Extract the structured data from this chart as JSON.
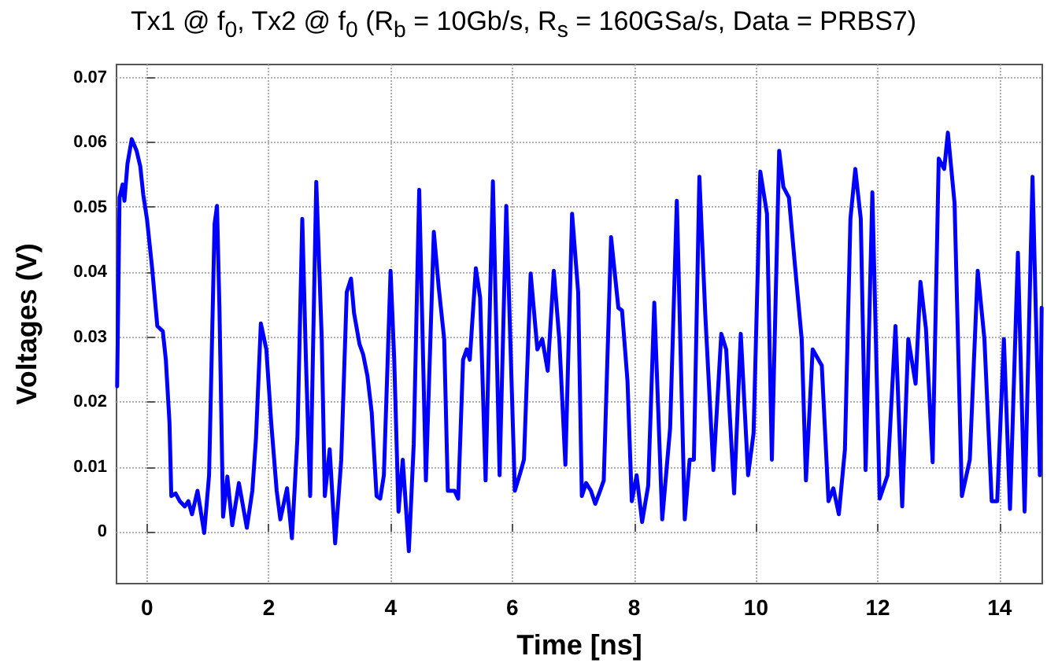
{
  "chart_data": {
    "type": "line",
    "title": "Tx1 @ f$_{0}$, Tx2 @ f$_{0}$ (R$_{b}$ = 10Gb/s, R$_{s}$ = 160GSa/s, Data = PRBS7)",
    "xlabel": "Time [ns]",
    "ylabel": "Voltages (V)",
    "xlim": [
      -0.5,
      14.7
    ],
    "ylim": [
      -0.008,
      0.072
    ],
    "xticks": [
      0,
      2,
      4,
      6,
      8,
      10,
      12,
      14
    ],
    "yticks": [
      0,
      0.01,
      0.02,
      0.03,
      0.04,
      0.05,
      0.06,
      0.07
    ],
    "grid": true,
    "marker": "none",
    "line_style": "solid",
    "series": [
      {
        "color": "#0000ff",
        "x": [
          -0.49,
          -0.45,
          -0.4,
          -0.37,
          -0.32,
          -0.25,
          -0.17,
          -0.11,
          -0.06,
          0,
          0.085,
          0.17,
          0.26,
          0.31,
          0.37,
          0.4,
          0.47,
          0.54,
          0.62,
          0.68,
          0.74,
          0.83,
          0.94,
          1.02,
          1.11,
          1.15,
          1.19,
          1.25,
          1.32,
          1.4,
          1.51,
          1.64,
          1.73,
          1.79,
          1.87,
          1.96,
          2.04,
          2.13,
          2.19,
          2.3,
          2.38,
          2.47,
          2.55,
          2.61,
          2.68,
          2.78,
          2.87,
          2.92,
          3,
          3.09,
          3.19,
          3.28,
          3.35,
          3.4,
          3.49,
          3.55,
          3.62,
          3.69,
          3.77,
          3.83,
          3.89,
          4,
          4.06,
          4.13,
          4.2,
          4.3,
          4.38,
          4.47,
          4.58,
          4.71,
          4.79,
          4.88,
          4.94,
          5.05,
          5.11,
          5.19,
          5.25,
          5.3,
          5.4,
          5.47,
          5.56,
          5.68,
          5.79,
          5.9,
          6.04,
          6.13,
          6.19,
          6.3,
          6.41,
          6.49,
          6.58,
          6.68,
          6.77,
          6.87,
          6.98,
          7.08,
          7.14,
          7.21,
          7.29,
          7.36,
          7.44,
          7.5,
          7.62,
          7.74,
          7.8,
          7.89,
          7.96,
          8.04,
          8.13,
          8.23,
          8.33,
          8.46,
          8.59,
          8.7,
          8.83,
          8.91,
          8.98,
          9.07,
          9.17,
          9.3,
          9.43,
          9.51,
          9.64,
          9.75,
          9.87,
          9.96,
          10.07,
          10.18,
          10.26,
          10.38,
          10.45,
          10.54,
          10.64,
          10.75,
          10.82,
          10.93,
          11.08,
          11.19,
          11.27,
          11.36,
          11.46,
          11.55,
          11.63,
          11.72,
          11.8,
          11.91,
          12.03,
          12.16,
          12.29,
          12.4,
          12.5,
          12.62,
          12.7,
          12.79,
          12.9,
          13,
          13.09,
          13.15,
          13.26,
          13.38,
          13.51,
          13.64,
          13.75,
          13.87,
          13.96,
          14.07,
          14.17,
          14.3,
          14.41,
          14.54,
          14.66,
          14.69
        ],
        "values": [
          0.0224,
          0.0515,
          0.0535,
          0.051,
          0.0567,
          0.0605,
          0.0587,
          0.0563,
          0.0519,
          0.0482,
          0.0406,
          0.0317,
          0.0309,
          0.0265,
          0.0168,
          0.0055,
          0.0059,
          0.0047,
          0.0039,
          0.0047,
          0.0027,
          0.0063,
          -0.0002,
          0.0087,
          0.0474,
          0.0502,
          0.0345,
          0.0023,
          0.0085,
          0.001,
          0.0075,
          0.0006,
          0.0063,
          0.0144,
          0.0321,
          0.0281,
          0.0168,
          0.0063,
          0.0019,
          0.0067,
          -0.001,
          0.0144,
          0.0482,
          0.0265,
          0.0055,
          0.0539,
          0.0297,
          0.0055,
          0.0127,
          -0.0018,
          0.0111,
          0.0369,
          0.039,
          0.0337,
          0.0289,
          0.0273,
          0.024,
          0.0184,
          0.0055,
          0.0051,
          0.0087,
          0.0402,
          0.0265,
          0.0031,
          0.0111,
          -0.003,
          0.0135,
          0.0527,
          0.0079,
          0.0462,
          0.0377,
          0.0297,
          0.0063,
          0.0063,
          0.0051,
          0.0265,
          0.0281,
          0.0265,
          0.0406,
          0.0361,
          0.0079,
          0.054,
          0.0087,
          0.0502,
          0.0063,
          0.0091,
          0.0111,
          0.0398,
          0.0281,
          0.0297,
          0.0248,
          0.0402,
          0.0297,
          0.0103,
          0.049,
          0.0369,
          0.0055,
          0.0075,
          0.0063,
          0.0043,
          0.0063,
          0.0079,
          0.0454,
          0.0345,
          0.0341,
          0.0232,
          0.0047,
          0.0087,
          0.0015,
          0.0071,
          0.0353,
          0.0019,
          0.016,
          0.051,
          0.0019,
          0.0111,
          0.0111,
          0.0547,
          0.0329,
          0.0095,
          0.0305,
          0.0281,
          0.0059,
          0.0305,
          0.0087,
          0.0152,
          0.0555,
          0.049,
          0.0111,
          0.0587,
          0.0531,
          0.0515,
          0.041,
          0.0297,
          0.0079,
          0.0281,
          0.0256,
          0.0047,
          0.0067,
          0.0027,
          0.0127,
          0.0482,
          0.0559,
          0.0482,
          0.0095,
          0.0523,
          0.0051,
          0.0087,
          0.0317,
          0.0039,
          0.0297,
          0.0228,
          0.0385,
          0.0313,
          0.0107,
          0.0575,
          0.0559,
          0.0615,
          0.0506,
          0.0055,
          0.0111,
          0.0402,
          0.0297,
          0.0047,
          0.0047,
          0.0297,
          0.0035,
          0.043,
          0.0031,
          0.0547,
          0.0087,
          0.0345
        ]
      }
    ]
  }
}
